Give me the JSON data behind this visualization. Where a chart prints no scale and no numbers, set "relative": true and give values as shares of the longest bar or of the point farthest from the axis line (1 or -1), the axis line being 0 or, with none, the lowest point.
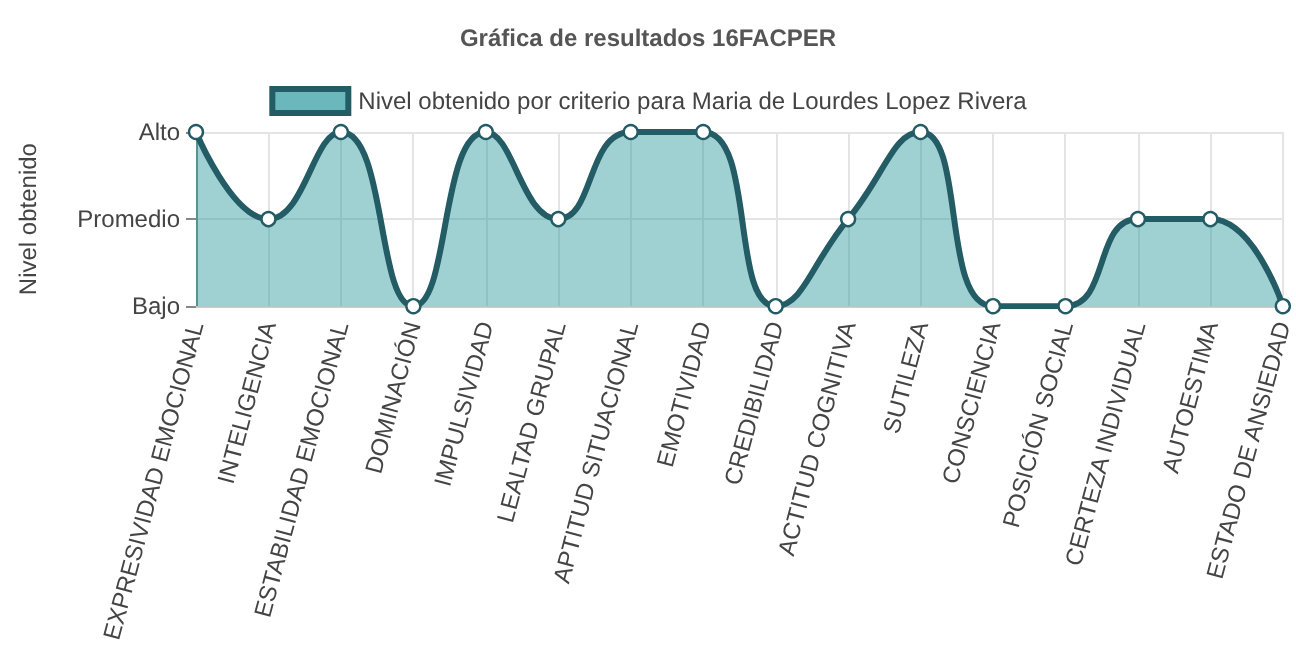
{
  "chart_data": {
    "type": "area",
    "title": "Gráfica de resultados 16FACPER",
    "ylabel": "Nivel obtenido",
    "categories": [
      "EXPRESIVIDAD EMOCIONAL",
      "INTELIGENCIA",
      "ESTABILIDAD EMOCIONAL",
      "DOMINACIÓN",
      "IMPULSIVIDAD",
      "LEALTAD GRUPAL",
      "APTITUD SITUACIONAL",
      "EMOTIVIDAD",
      "CREDIBILIDAD",
      "ACTITUD COGNITIVA",
      "SUTILEZA",
      "CONSCIENCIA",
      "POSICIÓN SOCIAL",
      "CERTEZA INDIVIDUAL",
      "AUTOESTIMA",
      "ESTADO DE ANSIEDAD"
    ],
    "y_categories": [
      "Alto",
      "Promedio",
      "Bajo"
    ],
    "relative": true,
    "series": [
      {
        "name": "Nivel obtenido por criterio para Maria de Lourdes Lopez Rivera",
        "color": "#245c66",
        "values": [
          1,
          0.5,
          1,
          0,
          1,
          0.5,
          1,
          1,
          0,
          0.5,
          1,
          0,
          0,
          0.5,
          0.5,
          0
        ]
      }
    ],
    "grid": true,
    "legend": "top",
    "marker": "circle",
    "line_style": "solid"
  }
}
